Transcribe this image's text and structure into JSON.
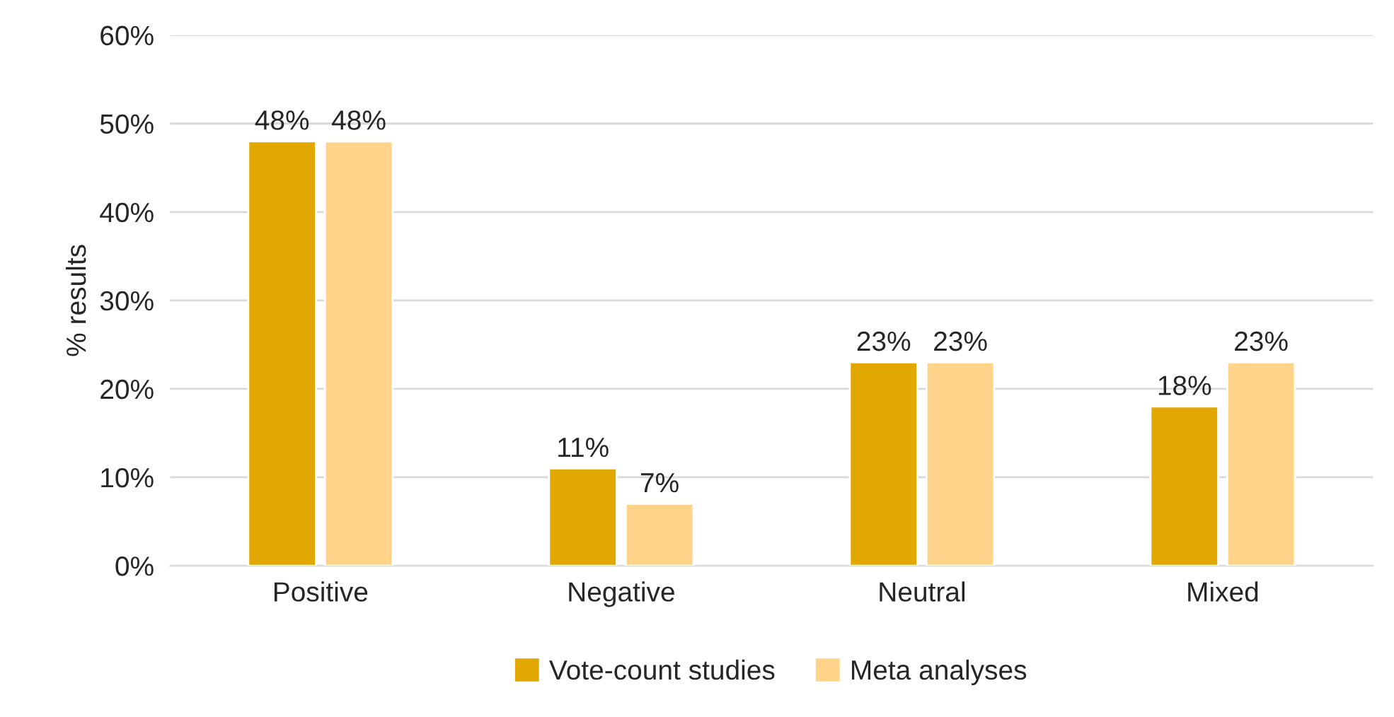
{
  "chart_data": {
    "type": "bar",
    "ylabel": "% results",
    "categories": [
      "Positive",
      "Negative",
      "Neutral",
      "Mixed"
    ],
    "series": [
      {
        "name": "Vote-count studies",
        "color": "#e0a800",
        "values": [
          48,
          11,
          23,
          18
        ],
        "value_labels": [
          "48%",
          "11%",
          "23%",
          "18%"
        ]
      },
      {
        "name": "Meta analyses",
        "color": "#ffd38a",
        "values": [
          48,
          7,
          23,
          23
        ],
        "value_labels": [
          "48%",
          "7%",
          "23%",
          "23%"
        ]
      }
    ],
    "ylim": [
      0,
      60
    ],
    "yticks": [
      {
        "value": 0,
        "label": "0%"
      },
      {
        "value": 10,
        "label": "10%"
      },
      {
        "value": 20,
        "label": "20%"
      },
      {
        "value": 30,
        "label": "30%"
      },
      {
        "value": 40,
        "label": "40%"
      },
      {
        "value": 50,
        "label": "50%"
      },
      {
        "value": 60,
        "label": "60%"
      }
    ],
    "grid": "y",
    "legend": "bottom"
  }
}
